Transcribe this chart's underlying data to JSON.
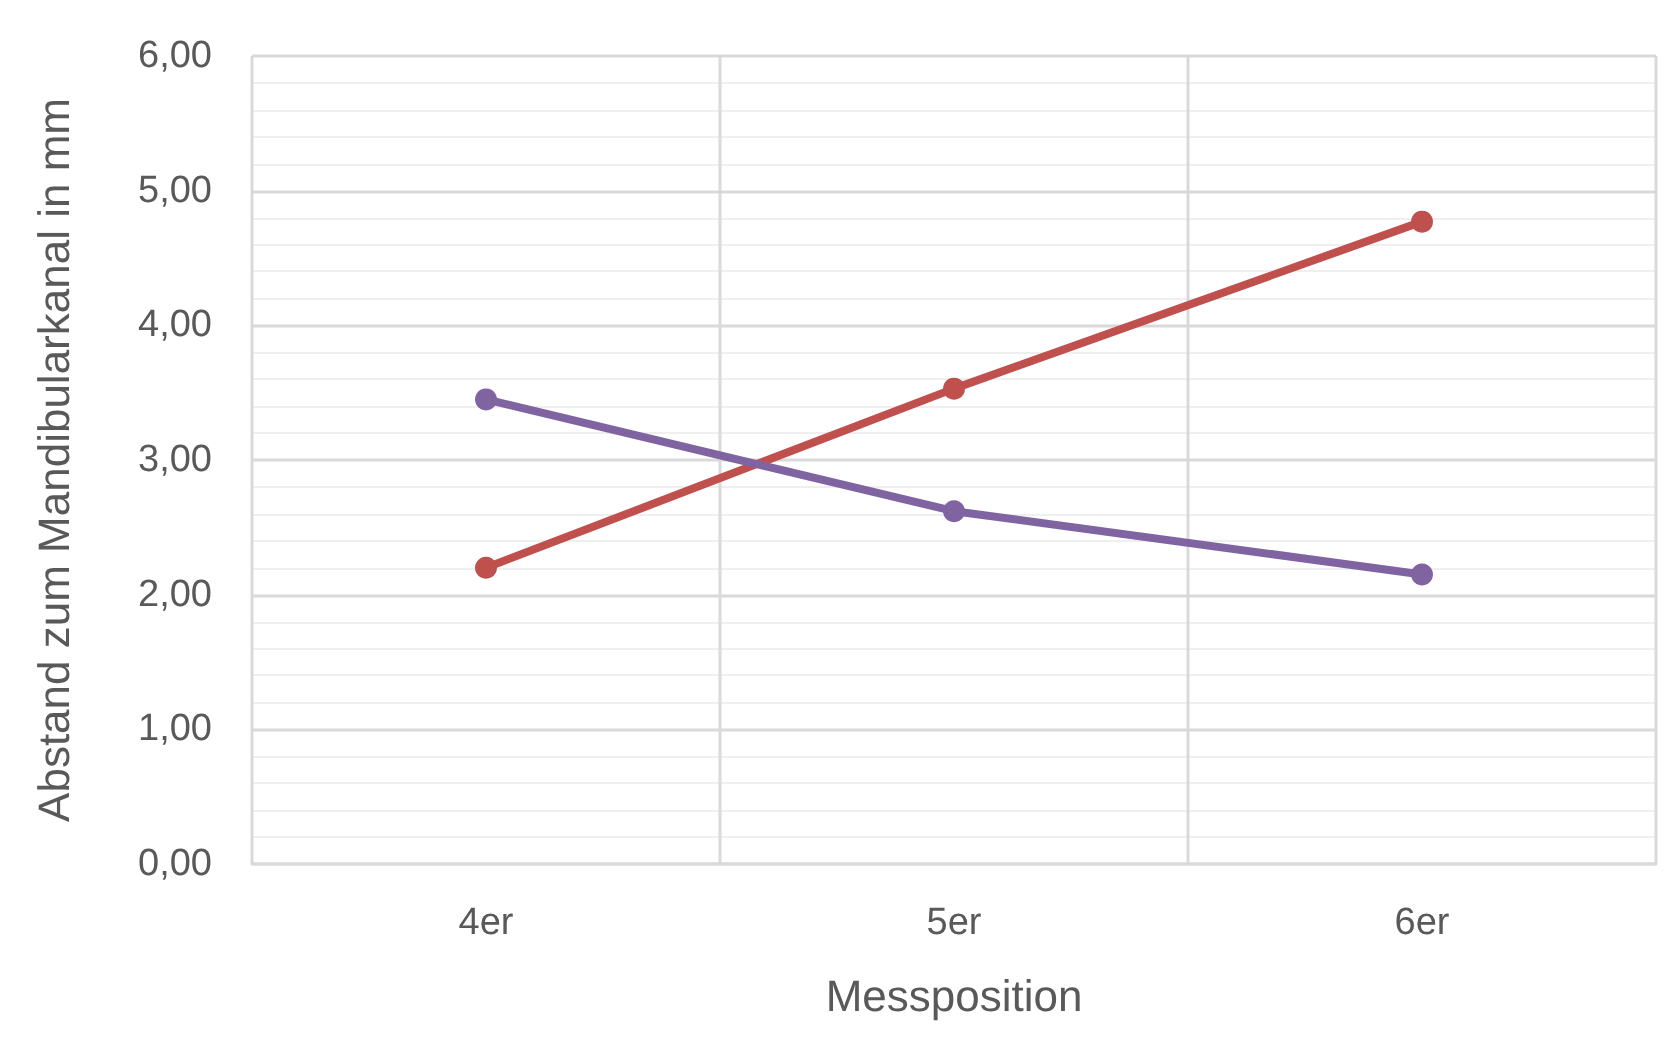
{
  "chart_data": {
    "type": "line",
    "xlabel": "Messposition",
    "ylabel": "Abstand zum Mandibularkanal in mm",
    "categories": [
      "4er",
      "5er",
      "6er"
    ],
    "series": [
      {
        "color": "#c0504d",
        "values": [
          2.2,
          3.53,
          4.77
        ]
      },
      {
        "color": "#8064a2",
        "values": [
          3.45,
          2.62,
          2.15
        ]
      }
    ],
    "ylim": [
      0,
      6
    ],
    "yticks": [
      {
        "value": 0,
        "label": "0,00"
      },
      {
        "value": 1,
        "label": "1,00"
      },
      {
        "value": 2,
        "label": "2,00"
      },
      {
        "value": 3,
        "label": "3,00"
      },
      {
        "value": 4,
        "label": "4,00"
      },
      {
        "value": 5,
        "label": "5,00"
      },
      {
        "value": 6,
        "label": "6,00"
      }
    ],
    "grid": true,
    "marker": "circle",
    "line_style": "solid"
  }
}
